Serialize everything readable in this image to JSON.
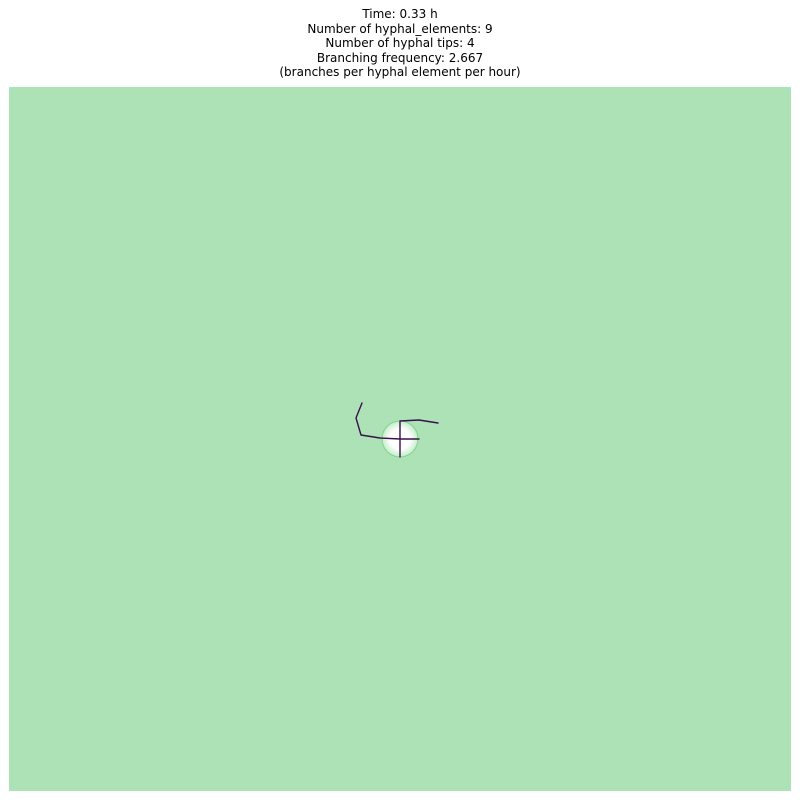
{
  "title": {
    "lines": [
      "Time: 0.33 h",
      "Number of hyphal_elements: 9",
      "Number of hyphal tips: 4",
      "Branching frequency: 2.667",
      "(branches per hyphal element per hour)"
    ]
  },
  "colors": {
    "background_field": "#ade2b7",
    "spore_fill": "#ffffff",
    "spore_glow": "#c4ecc9",
    "spore_ring": "#7fd38d",
    "hyphae": "#3b0f4c"
  },
  "simulation": {
    "time_h": 0.33,
    "hyphal_elements": 9,
    "hyphal_tips": 4,
    "branching_frequency": 2.667
  }
}
